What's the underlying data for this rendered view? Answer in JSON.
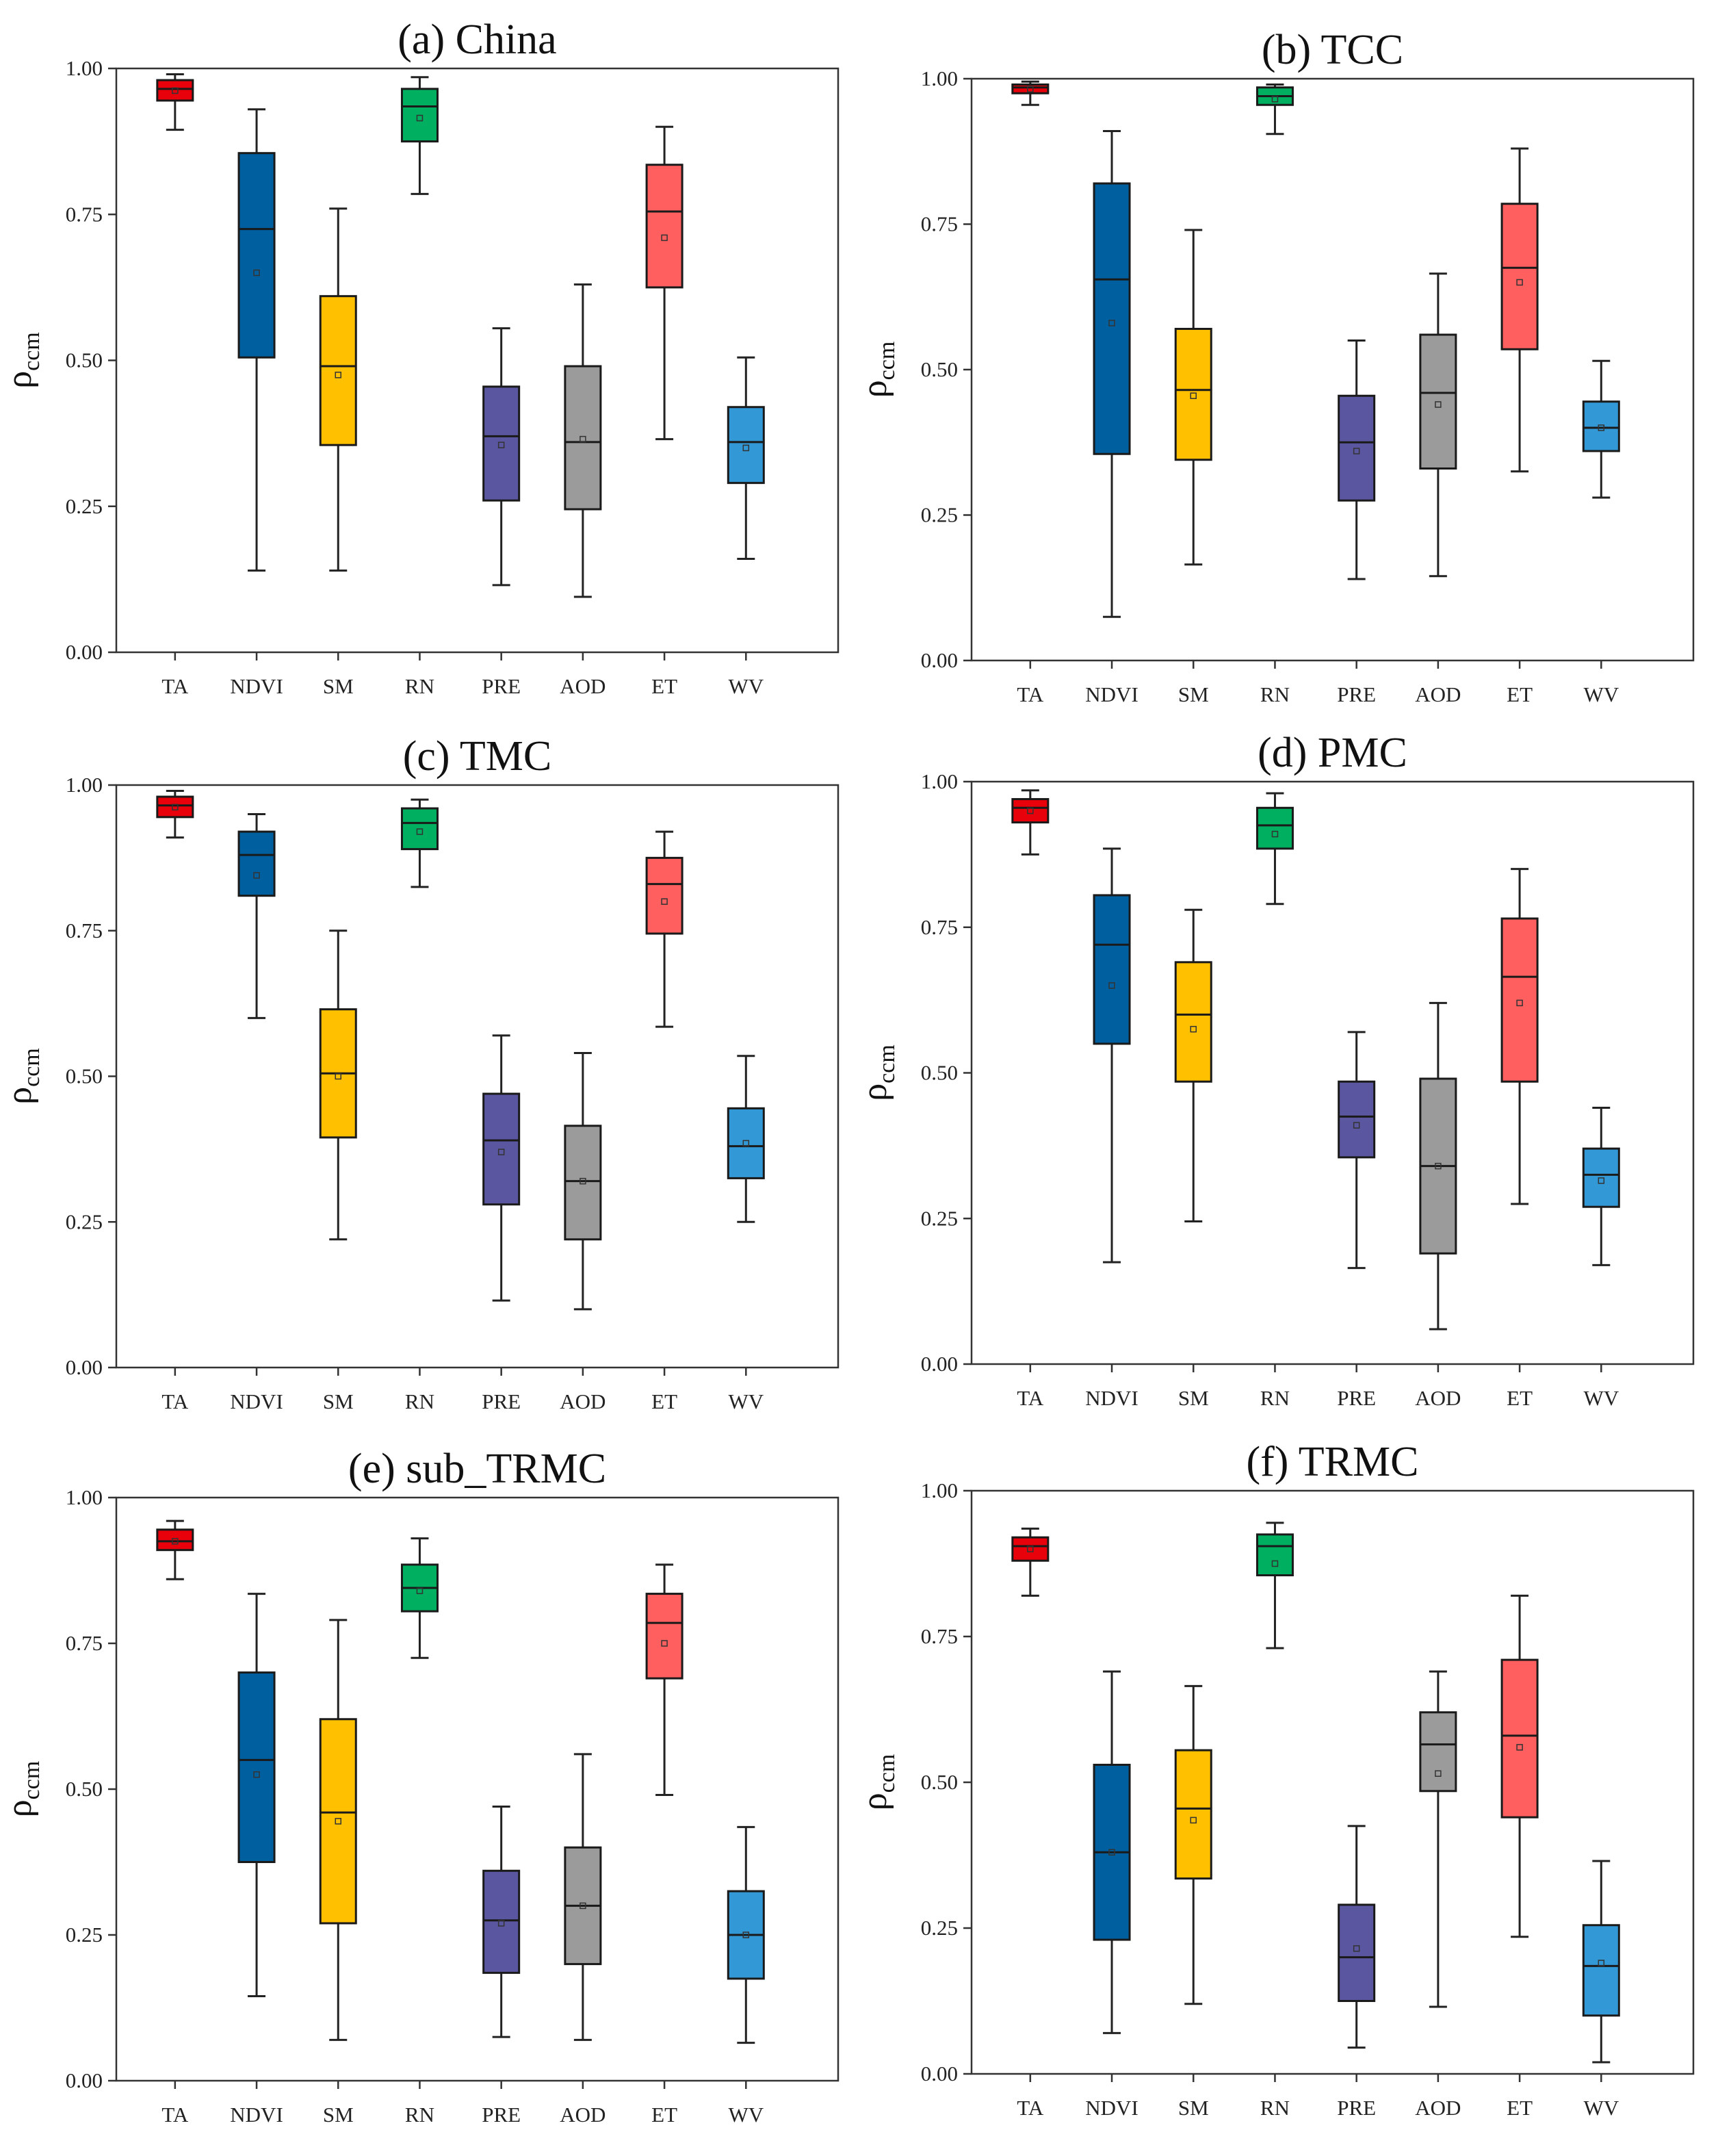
{
  "figure": {
    "y_label": "ρ",
    "y_label_subscript": "ccm"
  },
  "colors": {
    "TA": "#e8000b",
    "NDVI": "#00609f",
    "SM": "#ffc000",
    "RN": "#00b060",
    "PRE": "#5a57a0",
    "AOD": "#9b9b9b",
    "ET": "#ff5f5f",
    "WV": "#3399d6"
  },
  "chart_data": [
    {
      "type": "box",
      "title": "(a) China",
      "categories": [
        "TA",
        "NDVI",
        "SM",
        "RN",
        "PRE",
        "AOD",
        "ET",
        "WV"
      ],
      "ylim": [
        0,
        1
      ],
      "yticks": [
        "0.00",
        "0.25",
        "0.50",
        "0.75",
        "1.00"
      ],
      "boxes": [
        {
          "min": 0.895,
          "q1": 0.945,
          "median": 0.965,
          "q3": 0.98,
          "max": 0.99,
          "mean": 0.962
        },
        {
          "min": 0.14,
          "q1": 0.505,
          "median": 0.725,
          "q3": 0.855,
          "max": 0.93,
          "mean": 0.65
        },
        {
          "min": 0.14,
          "q1": 0.355,
          "median": 0.49,
          "q3": 0.61,
          "max": 0.76,
          "mean": 0.475
        },
        {
          "min": 0.785,
          "q1": 0.875,
          "median": 0.935,
          "q3": 0.965,
          "max": 0.985,
          "mean": 0.915
        },
        {
          "min": 0.115,
          "q1": 0.26,
          "median": 0.37,
          "q3": 0.455,
          "max": 0.555,
          "mean": 0.355
        },
        {
          "min": 0.095,
          "q1": 0.245,
          "median": 0.36,
          "q3": 0.49,
          "max": 0.63,
          "mean": 0.365
        },
        {
          "min": 0.365,
          "q1": 0.625,
          "median": 0.755,
          "q3": 0.835,
          "max": 0.9,
          "mean": 0.71
        },
        {
          "min": 0.16,
          "q1": 0.29,
          "median": 0.36,
          "q3": 0.42,
          "max": 0.505,
          "mean": 0.35
        }
      ]
    },
    {
      "type": "box",
      "title": "(b) TCC",
      "categories": [
        "TA",
        "NDVI",
        "SM",
        "RN",
        "PRE",
        "AOD",
        "ET",
        "WV"
      ],
      "ylim": [
        0,
        1
      ],
      "yticks": [
        "0.00",
        "0.25",
        "0.50",
        "0.75",
        "1.00"
      ],
      "boxes": [
        {
          "min": 0.955,
          "q1": 0.975,
          "median": 0.985,
          "q3": 0.99,
          "max": 0.995,
          "mean": 0.982
        },
        {
          "min": 0.075,
          "q1": 0.355,
          "median": 0.655,
          "q3": 0.82,
          "max": 0.91,
          "mean": 0.58
        },
        {
          "min": 0.165,
          "q1": 0.345,
          "median": 0.465,
          "q3": 0.57,
          "max": 0.74,
          "mean": 0.455
        },
        {
          "min": 0.905,
          "q1": 0.955,
          "median": 0.97,
          "q3": 0.985,
          "max": 0.99,
          "mean": 0.965
        },
        {
          "min": 0.14,
          "q1": 0.275,
          "median": 0.375,
          "q3": 0.455,
          "max": 0.55,
          "mean": 0.36
        },
        {
          "min": 0.145,
          "q1": 0.33,
          "median": 0.46,
          "q3": 0.56,
          "max": 0.665,
          "mean": 0.44
        },
        {
          "min": 0.325,
          "q1": 0.535,
          "median": 0.675,
          "q3": 0.785,
          "max": 0.88,
          "mean": 0.65
        },
        {
          "min": 0.28,
          "q1": 0.36,
          "median": 0.4,
          "q3": 0.445,
          "max": 0.515,
          "mean": 0.4
        }
      ]
    },
    {
      "type": "box",
      "title": "(c) TMC",
      "categories": [
        "TA",
        "NDVI",
        "SM",
        "RN",
        "PRE",
        "AOD",
        "ET",
        "WV"
      ],
      "ylim": [
        0,
        1
      ],
      "yticks": [
        "0.00",
        "0.25",
        "0.50",
        "0.75",
        "1.00"
      ],
      "boxes": [
        {
          "min": 0.91,
          "q1": 0.945,
          "median": 0.965,
          "q3": 0.98,
          "max": 0.99,
          "mean": 0.962
        },
        {
          "min": 0.6,
          "q1": 0.81,
          "median": 0.88,
          "q3": 0.92,
          "max": 0.95,
          "mean": 0.845
        },
        {
          "min": 0.22,
          "q1": 0.395,
          "median": 0.505,
          "q3": 0.615,
          "max": 0.75,
          "mean": 0.5
        },
        {
          "min": 0.825,
          "q1": 0.89,
          "median": 0.935,
          "q3": 0.96,
          "max": 0.975,
          "mean": 0.92
        },
        {
          "min": 0.115,
          "q1": 0.28,
          "median": 0.39,
          "q3": 0.47,
          "max": 0.57,
          "mean": 0.37
        },
        {
          "min": 0.1,
          "q1": 0.22,
          "median": 0.32,
          "q3": 0.415,
          "max": 0.54,
          "mean": 0.32
        },
        {
          "min": 0.585,
          "q1": 0.745,
          "median": 0.83,
          "q3": 0.875,
          "max": 0.92,
          "mean": 0.8
        },
        {
          "min": 0.25,
          "q1": 0.325,
          "median": 0.38,
          "q3": 0.445,
          "max": 0.535,
          "mean": 0.385
        }
      ]
    },
    {
      "type": "box",
      "title": "(d) PMC",
      "categories": [
        "TA",
        "NDVI",
        "SM",
        "RN",
        "PRE",
        "AOD",
        "ET",
        "WV"
      ],
      "ylim": [
        0,
        1
      ],
      "yticks": [
        "0.00",
        "0.25",
        "0.50",
        "0.75",
        "1.00"
      ],
      "boxes": [
        {
          "min": 0.875,
          "q1": 0.93,
          "median": 0.955,
          "q3": 0.97,
          "max": 0.985,
          "mean": 0.95
        },
        {
          "min": 0.175,
          "q1": 0.55,
          "median": 0.72,
          "q3": 0.805,
          "max": 0.885,
          "mean": 0.65
        },
        {
          "min": 0.245,
          "q1": 0.485,
          "median": 0.6,
          "q3": 0.69,
          "max": 0.78,
          "mean": 0.575
        },
        {
          "min": 0.79,
          "q1": 0.885,
          "median": 0.925,
          "q3": 0.955,
          "max": 0.98,
          "mean": 0.91
        },
        {
          "min": 0.165,
          "q1": 0.355,
          "median": 0.425,
          "q3": 0.485,
          "max": 0.57,
          "mean": 0.41
        },
        {
          "min": 0.06,
          "q1": 0.19,
          "median": 0.34,
          "q3": 0.49,
          "max": 0.62,
          "mean": 0.34
        },
        {
          "min": 0.275,
          "q1": 0.485,
          "median": 0.665,
          "q3": 0.765,
          "max": 0.85,
          "mean": 0.62
        },
        {
          "min": 0.17,
          "q1": 0.27,
          "median": 0.325,
          "q3": 0.37,
          "max": 0.44,
          "mean": 0.315
        }
      ]
    },
    {
      "type": "box",
      "title": "(e) sub_TRMC",
      "categories": [
        "TA",
        "NDVI",
        "SM",
        "RN",
        "PRE",
        "AOD",
        "ET",
        "WV"
      ],
      "ylim": [
        0,
        1
      ],
      "yticks": [
        "0.00",
        "0.25",
        "0.50",
        "0.75",
        "1.00"
      ],
      "boxes": [
        {
          "min": 0.86,
          "q1": 0.91,
          "median": 0.925,
          "q3": 0.945,
          "max": 0.96,
          "mean": 0.925
        },
        {
          "min": 0.145,
          "q1": 0.375,
          "median": 0.55,
          "q3": 0.7,
          "max": 0.835,
          "mean": 0.525
        },
        {
          "min": 0.07,
          "q1": 0.27,
          "median": 0.46,
          "q3": 0.62,
          "max": 0.79,
          "mean": 0.445
        },
        {
          "min": 0.725,
          "q1": 0.805,
          "median": 0.845,
          "q3": 0.885,
          "max": 0.93,
          "mean": 0.84
        },
        {
          "min": 0.075,
          "q1": 0.185,
          "median": 0.275,
          "q3": 0.36,
          "max": 0.47,
          "mean": 0.27
        },
        {
          "min": 0.07,
          "q1": 0.2,
          "median": 0.3,
          "q3": 0.4,
          "max": 0.56,
          "mean": 0.3
        },
        {
          "min": 0.49,
          "q1": 0.69,
          "median": 0.785,
          "q3": 0.835,
          "max": 0.885,
          "mean": 0.75
        },
        {
          "min": 0.065,
          "q1": 0.175,
          "median": 0.25,
          "q3": 0.325,
          "max": 0.435,
          "mean": 0.25
        }
      ]
    },
    {
      "type": "box",
      "title": "(f) TRMC",
      "categories": [
        "TA",
        "NDVI",
        "SM",
        "RN",
        "PRE",
        "AOD",
        "ET",
        "WV"
      ],
      "ylim": [
        0,
        1
      ],
      "yticks": [
        "0.00",
        "0.25",
        "0.50",
        "0.75",
        "1.00"
      ],
      "boxes": [
        {
          "min": 0.82,
          "q1": 0.88,
          "median": 0.905,
          "q3": 0.92,
          "max": 0.935,
          "mean": 0.9
        },
        {
          "min": 0.07,
          "q1": 0.23,
          "median": 0.38,
          "q3": 0.53,
          "max": 0.69,
          "mean": 0.38
        },
        {
          "min": 0.12,
          "q1": 0.335,
          "median": 0.455,
          "q3": 0.555,
          "max": 0.665,
          "mean": 0.435
        },
        {
          "min": 0.73,
          "q1": 0.855,
          "median": 0.905,
          "q3": 0.925,
          "max": 0.945,
          "mean": 0.875
        },
        {
          "min": 0.045,
          "q1": 0.125,
          "median": 0.2,
          "q3": 0.29,
          "max": 0.425,
          "mean": 0.215
        },
        {
          "min": 0.115,
          "q1": 0.485,
          "median": 0.565,
          "q3": 0.62,
          "max": 0.69,
          "mean": 0.515
        },
        {
          "min": 0.235,
          "q1": 0.44,
          "median": 0.58,
          "q3": 0.71,
          "max": 0.82,
          "mean": 0.56
        },
        {
          "min": 0.02,
          "q1": 0.1,
          "median": 0.185,
          "q3": 0.255,
          "max": 0.365,
          "mean": 0.19
        }
      ]
    }
  ]
}
